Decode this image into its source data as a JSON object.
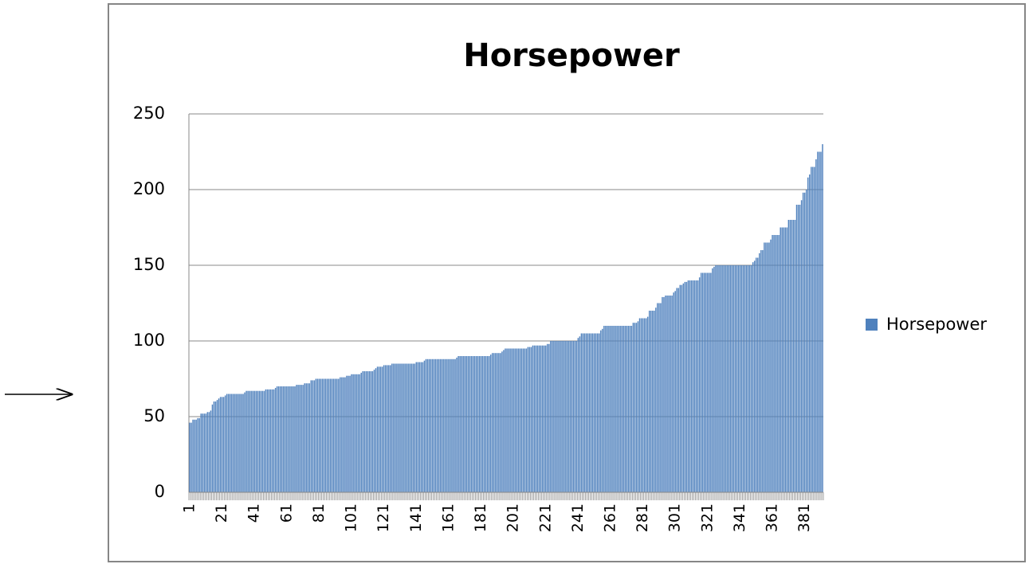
{
  "chart_data": {
    "type": "bar",
    "title": "Horsepower",
    "series": [
      {
        "name": "Horsepower",
        "color": "#4f81bd",
        "values": [
          46,
          46,
          48,
          48,
          48,
          49,
          49,
          52,
          52,
          52,
          52,
          53,
          53,
          54,
          58,
          60,
          60,
          61,
          62,
          63,
          63,
          63,
          64,
          65,
          65,
          65,
          65,
          65,
          65,
          65,
          65,
          65,
          65,
          65,
          66,
          67,
          67,
          67,
          67,
          67,
          67,
          67,
          67,
          67,
          67,
          67,
          67,
          68,
          68,
          68,
          68,
          68,
          68,
          69,
          70,
          70,
          70,
          70,
          70,
          70,
          70,
          70,
          70,
          70,
          70,
          70,
          71,
          71,
          71,
          71,
          71,
          72,
          72,
          72,
          72,
          74,
          74,
          74,
          75,
          75,
          75,
          75,
          75,
          75,
          75,
          75,
          75,
          75,
          75,
          75,
          75,
          75,
          75,
          76,
          76,
          76,
          76,
          77,
          77,
          77,
          78,
          78,
          78,
          78,
          78,
          78,
          79,
          80,
          80,
          80,
          80,
          80,
          80,
          80,
          81,
          82,
          83,
          83,
          83,
          83,
          84,
          84,
          84,
          84,
          84,
          85,
          85,
          85,
          85,
          85,
          85,
          85,
          85,
          85,
          85,
          85,
          85,
          85,
          85,
          85,
          86,
          86,
          86,
          86,
          86,
          87,
          88,
          88,
          88,
          88,
          88,
          88,
          88,
          88,
          88,
          88,
          88,
          88,
          88,
          88,
          88,
          88,
          88,
          88,
          88,
          89,
          90,
          90,
          90,
          90,
          90,
          90,
          90,
          90,
          90,
          90,
          90,
          90,
          90,
          90,
          90,
          90,
          90,
          90,
          90,
          90,
          91,
          92,
          92,
          92,
          92,
          92,
          92,
          93,
          94,
          95,
          95,
          95,
          95,
          95,
          95,
          95,
          95,
          95,
          95,
          95,
          95,
          95,
          95,
          96,
          96,
          96,
          97,
          97,
          97,
          97,
          97,
          97,
          97,
          97,
          97,
          98,
          98,
          100,
          100,
          100,
          100,
          100,
          100,
          100,
          100,
          100,
          100,
          100,
          100,
          100,
          100,
          100,
          100,
          100,
          102,
          103,
          105,
          105,
          105,
          105,
          105,
          105,
          105,
          105,
          105,
          105,
          105,
          105,
          107,
          108,
          110,
          110,
          110,
          110,
          110,
          110,
          110,
          110,
          110,
          110,
          110,
          110,
          110,
          110,
          110,
          110,
          110,
          110,
          112,
          112,
          112,
          113,
          115,
          115,
          115,
          115,
          115,
          116,
          120,
          120,
          120,
          120,
          122,
          125,
          125,
          125,
          129,
          129,
          130,
          130,
          130,
          130,
          130,
          132,
          133,
          135,
          135,
          137,
          137,
          138,
          139,
          139,
          140,
          140,
          140,
          140,
          140,
          140,
          140,
          142,
          145,
          145,
          145,
          145,
          145,
          145,
          145,
          148,
          149,
          150,
          150,
          150,
          150,
          150,
          150,
          150,
          150,
          150,
          150,
          150,
          150,
          150,
          150,
          150,
          150,
          150,
          150,
          150,
          150,
          150,
          150,
          150,
          152,
          153,
          155,
          155,
          158,
          160,
          160,
          165,
          165,
          165,
          165,
          167,
          170,
          170,
          170,
          170,
          170,
          175,
          175,
          175,
          175,
          175,
          180,
          180,
          180,
          180,
          180,
          190,
          190,
          190,
          193,
          198,
          198,
          200,
          208,
          210,
          215,
          215,
          215,
          220,
          225,
          225,
          225,
          230
        ]
      }
    ],
    "categories": [
      1,
      null,
      null,
      null,
      null,
      null,
      null,
      null,
      null,
      null,
      null,
      null,
      null,
      null,
      null,
      null,
      null,
      null,
      null,
      null,
      21,
      null,
      null,
      null,
      null,
      null,
      null,
      null,
      null,
      null,
      null,
      null,
      null,
      null,
      null,
      null,
      null,
      null,
      null,
      null,
      41,
      null,
      null,
      null,
      null,
      null,
      null,
      null,
      null,
      null,
      null,
      null,
      null,
      null,
      null,
      null,
      null,
      null,
      null,
      null,
      61,
      null,
      null,
      null,
      null,
      null,
      null,
      null,
      null,
      null,
      null,
      null,
      null,
      null,
      null,
      null,
      null,
      null,
      null,
      null,
      81,
      null,
      null,
      null,
      null,
      null,
      null,
      null,
      null,
      null,
      null,
      null,
      null,
      null,
      null,
      null,
      null,
      null,
      null,
      null,
      101,
      null,
      null,
      null,
      null,
      null,
      null,
      null,
      null,
      null,
      null,
      null,
      null,
      null,
      null,
      null,
      null,
      null,
      null,
      null,
      121,
      null,
      null,
      null,
      null,
      null,
      null,
      null,
      null,
      null,
      null,
      null,
      null,
      null,
      null,
      null,
      null,
      null,
      null,
      null,
      141,
      null,
      null,
      null,
      null,
      null,
      null,
      null,
      null,
      null,
      null,
      null,
      null,
      null,
      null,
      null,
      null,
      null,
      null,
      null,
      161,
      null,
      null,
      null,
      null,
      null,
      null,
      null,
      null,
      null,
      null,
      null,
      null,
      null,
      null,
      null,
      null,
      null,
      null,
      null,
      181,
      null,
      null,
      null,
      null,
      null,
      null,
      null,
      null,
      null,
      null,
      null,
      null,
      null,
      null,
      null,
      null,
      null,
      null,
      null,
      201,
      null,
      null,
      null,
      null,
      null,
      null,
      null,
      null,
      null,
      null,
      null,
      null,
      null,
      null,
      null,
      null,
      null,
      null,
      null,
      221,
      null,
      null,
      null,
      null,
      null,
      null,
      null,
      null,
      null,
      null,
      null,
      null,
      null,
      null,
      null,
      null,
      null,
      null,
      null,
      241,
      null,
      null,
      null,
      null,
      null,
      null,
      null,
      null,
      null,
      null,
      null,
      null,
      null,
      null,
      null,
      null,
      null,
      null,
      null,
      261,
      null,
      null,
      null,
      null,
      null,
      null,
      null,
      null,
      null,
      null,
      null,
      null,
      null,
      null,
      null,
      null,
      null,
      null,
      null,
      281,
      null,
      null,
      null,
      null,
      null,
      null,
      null,
      null,
      null,
      null,
      null,
      null,
      null,
      null,
      null,
      null,
      null,
      null,
      null,
      301,
      null,
      null,
      null,
      null,
      null,
      null,
      null,
      null,
      null,
      null,
      null,
      null,
      null,
      null,
      null,
      null,
      null,
      null,
      null,
      321,
      null,
      null,
      null,
      null,
      null,
      null,
      null,
      null,
      null,
      null,
      null,
      null,
      null,
      null,
      null,
      null,
      null,
      null,
      null,
      341,
      null,
      null,
      null,
      null,
      null,
      null,
      null,
      null,
      null,
      null,
      null,
      null,
      null,
      null,
      null,
      null,
      null,
      null,
      null,
      361,
      null,
      null,
      null,
      null,
      null,
      null,
      null,
      null,
      null,
      null,
      null,
      null,
      null,
      null,
      null,
      null,
      null,
      null,
      null,
      381,
      null,
      null,
      null,
      null,
      null,
      null,
      null,
      null,
      null,
      null,
      null
    ],
    "ylim": [
      0,
      250
    ],
    "yticks": [
      0,
      50,
      100,
      150,
      200,
      250
    ],
    "grid": true,
    "legend": "right"
  }
}
